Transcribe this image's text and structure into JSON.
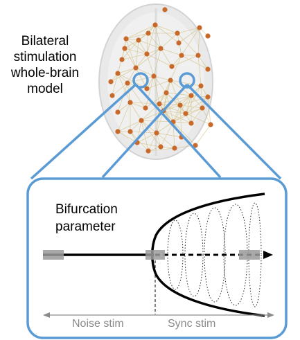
{
  "figure": {
    "brain_label_lines": [
      "Bilateral",
      "stimulation",
      "whole-brain",
      "model"
    ],
    "param_label_lines": [
      "Bifurcation",
      "parameter"
    ],
    "noise_label": "Noise stim",
    "sync_label": "Sync stim",
    "colors": {
      "accent_blue": "#5b9bd5",
      "node_orange": "#c8692a",
      "edge_yellow": "#c9b25a",
      "stim_gray": "#9a9a9a"
    },
    "icons": [
      "brain-network",
      "bifurcation-diagram",
      "arrow-right",
      "double-arrow"
    ]
  }
}
